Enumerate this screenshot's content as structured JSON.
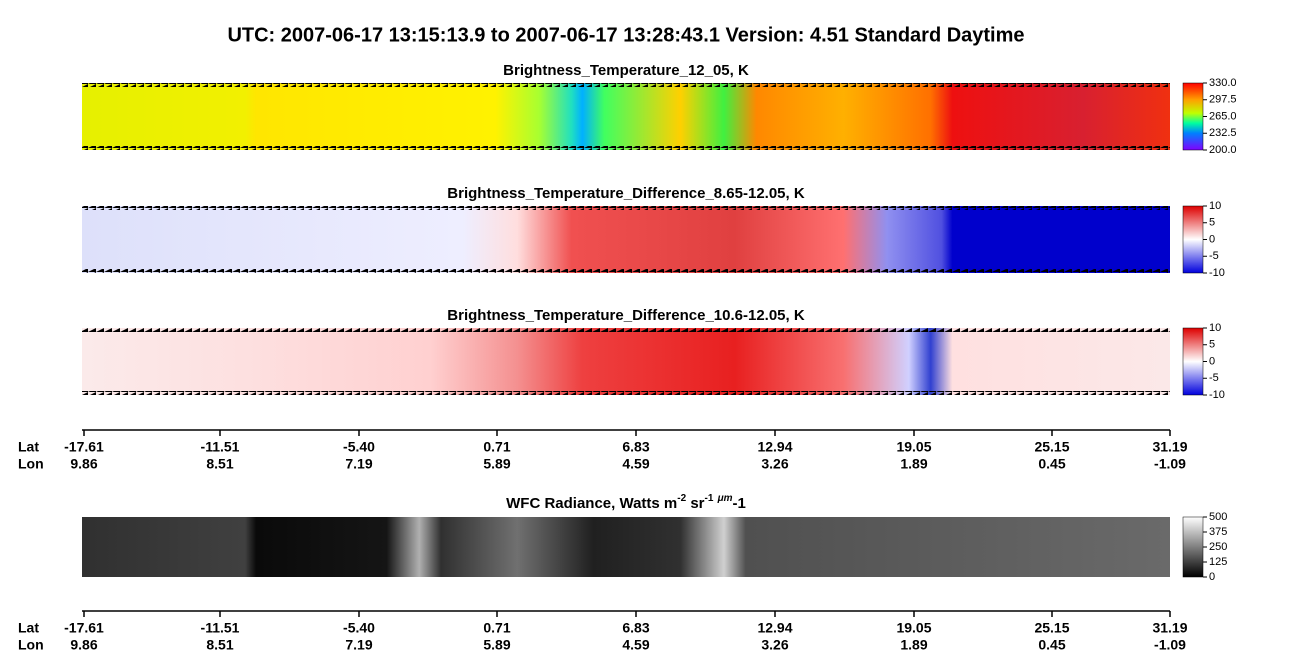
{
  "title": "UTC:  2007-06-17   13:15:13.9  to  2007-06-17   13:28:43.1    Version: 4.51  Standard Daytime",
  "panels": [
    {
      "title": "Brightness_Temperature_12_05, K",
      "colorbar_ticks": [
        "330.0",
        "297.5",
        "265.0",
        "232.5",
        "200.0"
      ]
    },
    {
      "title": "Brightness_Temperature_Difference_8.65-12.05, K",
      "colorbar_ticks": [
        "10",
        "5",
        "0",
        "-5",
        "-10"
      ]
    },
    {
      "title": "Brightness_Temperature_Difference_10.6-12.05, K",
      "colorbar_ticks": [
        "10",
        "5",
        "0",
        "-5",
        "-10"
      ]
    }
  ],
  "wfc": {
    "title_parts": [
      "WFC Radiance, Watts m",
      "-2",
      " sr",
      "-1",
      " ",
      "μm",
      "-1"
    ],
    "colorbar_ticks": [
      "500",
      "375",
      "250",
      "125",
      "0"
    ]
  },
  "axes": [
    {
      "row_labels": [
        "Lat",
        "Lon"
      ],
      "lat": [
        "-17.61",
        "-11.51",
        "-5.40",
        "0.71",
        "6.83",
        "12.94",
        "19.05",
        "25.15",
        "31.19"
      ],
      "lon": [
        "9.86",
        "8.51",
        "7.19",
        "5.89",
        "4.59",
        "3.26",
        "1.89",
        "0.45",
        "-1.09"
      ]
    },
    {
      "row_labels": [
        "Lat",
        "Lon"
      ],
      "lat": [
        "-17.61",
        "-11.51",
        "-5.40",
        "0.71",
        "6.83",
        "12.94",
        "19.05",
        "25.15",
        "31.19"
      ],
      "lon": [
        "9.86",
        "8.51",
        "7.19",
        "5.89",
        "4.59",
        "3.26",
        "1.89",
        "0.45",
        "-1.09"
      ]
    }
  ]
}
